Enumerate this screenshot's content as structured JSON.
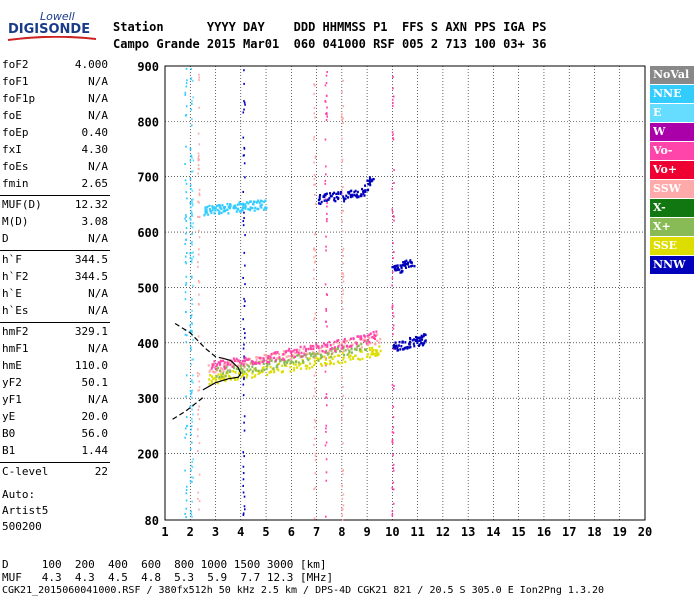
{
  "logo": {
    "top": "Lowell",
    "main": "DIGISONDE"
  },
  "header": {
    "row1": "Station      YYYY DAY    DDD HHMMSS P1  FFS S AXN PPS IGA PS",
    "row2": "Campo Grande 2015 Mar01  060 041000 RSF 005 2 713 100 03+ 36"
  },
  "params": [
    {
      "label": "foF2",
      "value": "4.000"
    },
    {
      "label": "foF1",
      "value": "N/A"
    },
    {
      "label": "foF1p",
      "value": "N/A"
    },
    {
      "label": "foE",
      "value": "N/A"
    },
    {
      "label": "foEp",
      "value": "0.40"
    },
    {
      "label": "fxI",
      "value": "4.30"
    },
    {
      "label": "foEs",
      "value": "N/A"
    },
    {
      "label": "fmin",
      "value": "2.65"
    },
    {
      "label": "MUF(D)",
      "value": "12.32"
    },
    {
      "label": "M(D)",
      "value": "3.08"
    },
    {
      "label": "D",
      "value": "N/A"
    },
    {
      "label": "h`F",
      "value": "344.5"
    },
    {
      "label": "h`F2",
      "value": "344.5"
    },
    {
      "label": "h`E",
      "value": "N/A"
    },
    {
      "label": "h`Es",
      "value": "N/A"
    },
    {
      "label": "hmF2",
      "value": "329.1"
    },
    {
      "label": "hmF1",
      "value": "N/A"
    },
    {
      "label": "hmE",
      "value": "110.0"
    },
    {
      "label": "yF2",
      "value": "50.1"
    },
    {
      "label": "yF1",
      "value": "N/A"
    },
    {
      "label": "yE",
      "value": "20.0"
    },
    {
      "label": "B0",
      "value": "56.0"
    },
    {
      "label": "B1",
      "value": "1.44"
    },
    {
      "label": "C-level",
      "value": "22"
    }
  ],
  "auto": {
    "line1": "Auto:",
    "line2": "Artist5",
    "line3": "500200"
  },
  "legend": [
    {
      "label": "NoVal",
      "color": "#888888"
    },
    {
      "label": "NNE",
      "color": "#33ccff"
    },
    {
      "label": "E",
      "color": "#66ddff"
    },
    {
      "label": "W",
      "color": "#aa00aa"
    },
    {
      "label": "Vo-",
      "color": "#ff44aa"
    },
    {
      "label": "Vo+",
      "color": "#ee0033"
    },
    {
      "label": "SSW",
      "color": "#ffaaaa"
    },
    {
      "label": "X-",
      "color": "#117711"
    },
    {
      "label": "X+",
      "color": "#88bb55"
    },
    {
      "label": "SSE",
      "color": "#dddd00"
    },
    {
      "label": "NNW",
      "color": "#0000bb"
    }
  ],
  "footer": {
    "d_row": "D     100  200  400  600  800 1000 1500 3000 [km]",
    "muf_row": "MUF   4.3  4.3  4.5  4.8  5.3  5.9  7.7 12.3 [MHz]",
    "file_row": "CGK21_2015060041000.RSF / 380fx512h 50 kHz 2.5 km / DPS-4D CGK21 821 / 20.5 S 305.0 E Ion2Png 1.3.20"
  },
  "chart_data": {
    "type": "scatter",
    "title": "",
    "xlabel": "",
    "ylabel": "",
    "xlim": [
      1,
      20
    ],
    "ylim": [
      80,
      900
    ],
    "x_ticks": [
      1,
      2,
      3,
      4,
      5,
      6,
      7,
      8,
      9,
      10,
      11,
      12,
      13,
      14,
      15,
      16,
      17,
      18,
      19,
      20
    ],
    "y_ticks": [
      80,
      200,
      300,
      400,
      500,
      600,
      700,
      800,
      900
    ],
    "grid": true,
    "profile": {
      "name": "",
      "points": [
        [
          2.5,
          315
        ],
        [
          3.0,
          328
        ],
        [
          3.5,
          335
        ],
        [
          3.9,
          338
        ],
        [
          4.0,
          345
        ],
        [
          3.9,
          355
        ],
        [
          3.6,
          368
        ],
        [
          3.3,
          372
        ]
      ]
    },
    "extrapolated_profile": {
      "name": "",
      "points": [
        [
          1.3,
          262
        ],
        [
          1.8,
          276
        ],
        [
          2.2,
          290
        ],
        [
          2.5,
          301
        ]
      ]
    },
    "upper_extension": {
      "name": "",
      "points": [
        [
          1.4,
          435
        ],
        [
          2.0,
          418
        ],
        [
          2.6,
          390
        ],
        [
          3.0,
          375
        ],
        [
          3.3,
          372
        ]
      ]
    },
    "traces": [
      {
        "direction": "SSE",
        "color": "#dddd00",
        "x": [
          2.7,
          3.3,
          4.0,
          5.0,
          6.0,
          7.0,
          8.0,
          9.0,
          9.5
        ],
        "y": [
          335,
          340,
          345,
          352,
          360,
          368,
          375,
          383,
          388
        ]
      },
      {
        "direction": "SSW",
        "color": "#ffaaaa",
        "x": [
          2.7,
          3.5,
          4.5,
          5.5,
          6.5,
          7.5,
          8.5,
          9.5
        ],
        "y": [
          355,
          362,
          370,
          378,
          385,
          392,
          400,
          410
        ]
      },
      {
        "direction": "X+",
        "color": "#88bb55",
        "x": [
          3.0,
          4.0,
          5.0,
          6.0,
          7.0,
          8.0,
          9.0
        ],
        "y": [
          348,
          356,
          362,
          370,
          378,
          388,
          396
        ]
      },
      {
        "direction": "Vo-",
        "color": "#ff44aa",
        "x": [
          2.8,
          3.6,
          4.6,
          5.6,
          6.6,
          7.6,
          8.6,
          9.4
        ],
        "y": [
          360,
          365,
          372,
          380,
          388,
          396,
          405,
          415
        ]
      },
      {
        "direction": "NNW",
        "color": "#0000bb",
        "x": [
          10.0,
          10.5,
          11.0,
          11.3
        ],
        "y": [
          395,
          400,
          405,
          410
        ]
      },
      {
        "direction": "NNW",
        "color": "#0000bb",
        "x": [
          7.0,
          7.6,
          8.2,
          8.8,
          9.2
        ],
        "y": [
          660,
          664,
          668,
          675,
          700
        ]
      },
      {
        "direction": "NNE",
        "color": "#33ccff",
        "x": [
          2.5,
          3.0,
          3.5,
          4.0,
          4.5,
          5.0
        ],
        "y": [
          640,
          642,
          645,
          648,
          650,
          652
        ]
      },
      {
        "direction": "NNW",
        "color": "#0000bb",
        "x": [
          10.0,
          10.4,
          10.8
        ],
        "y": [
          530,
          540,
          550
        ]
      }
    ]
  }
}
